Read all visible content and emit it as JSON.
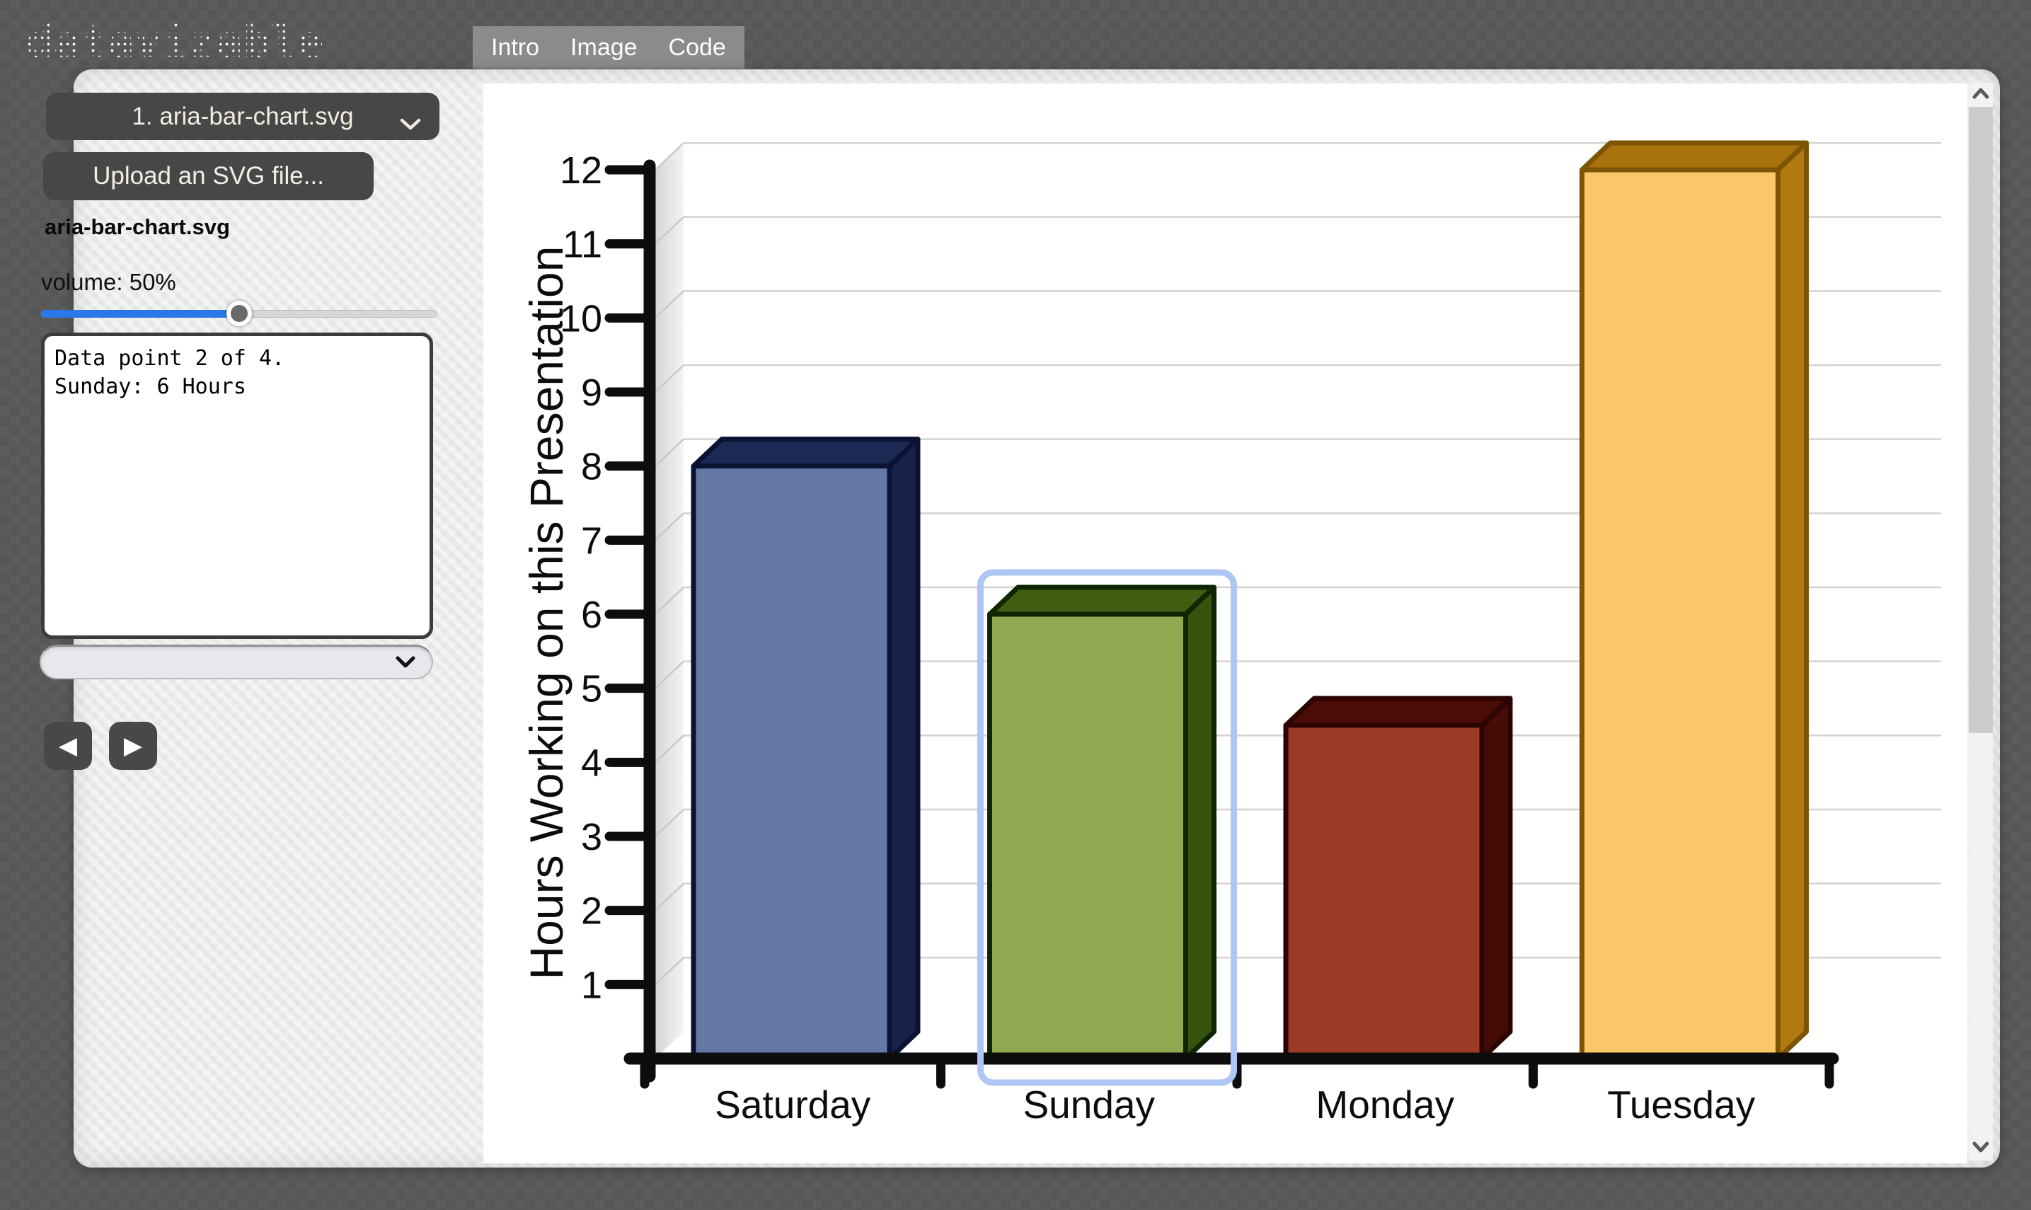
{
  "header": {
    "logo": "datavizable",
    "tabs": [
      {
        "label": "Intro"
      },
      {
        "label": "Image"
      },
      {
        "label": "Code"
      }
    ]
  },
  "sidebar": {
    "file_select": {
      "value": "1. aria-bar-chart.svg",
      "icon": "chevron-down-icon"
    },
    "upload_button_label": "Upload an SVG file...",
    "filename": "aria-bar-chart.svg",
    "volume_label": "volume: 50%",
    "volume_percent": 50,
    "announcement": "Data point 2 of 4.\nSunday: 6 Hours",
    "voice_select": {
      "value": "",
      "icon": "chevron-down-icon"
    },
    "prev_icon": "left-triangle-icon",
    "next_icon": "right-triangle-icon",
    "prev_glyph": "◀",
    "next_glyph": "▶"
  },
  "chart_data": {
    "type": "bar",
    "style": "3d",
    "categories": [
      "Saturday",
      "Sunday",
      "Monday",
      "Tuesday"
    ],
    "values": [
      8,
      6,
      4.5,
      12
    ],
    "title": "",
    "xlabel": "",
    "ylabel": "Hours Working on this Presentation",
    "yticks": [
      1,
      2,
      3,
      4,
      5,
      6,
      7,
      8,
      9,
      10,
      11,
      12
    ],
    "ylim": [
      0,
      12
    ],
    "grid": true,
    "selected_index": 1,
    "selected_label": "Sunday",
    "colors": {
      "front": [
        "#6478a6",
        "#8fa950",
        "#9b3a26",
        "#f9c76a"
      ],
      "top": [
        "#1b2a54",
        "#405d11",
        "#4b0c08",
        "#a8720d"
      ],
      "side": [
        "#172349",
        "#38530e",
        "#460b07",
        "#b17a10"
      ],
      "stroke": [
        "#0b1333",
        "#102503",
        "#2c0503",
        "#7c5404"
      ],
      "focus_ring": "#adc7f2",
      "gridline": "#d2d2d2",
      "axis": "#0d0d0d"
    }
  },
  "scrollbar": {
    "up_icon": "chevron-up-icon",
    "down_icon": "chevron-down-icon"
  }
}
